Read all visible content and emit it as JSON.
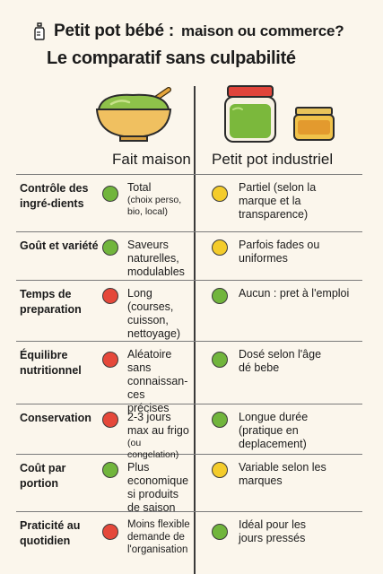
{
  "header": {
    "title_main": "Petit pot bébé :",
    "title_sub": "maison ou commerce?",
    "subtitle": "Le comparatif sans culpabilité"
  },
  "icons": {
    "title": "baby-bottle-icon",
    "homemade": "puree-bowl-icon",
    "industrial": "baby-food-jars-icon"
  },
  "columns": {
    "homemade": "Fait maison",
    "industrial": "Petit pot industriel"
  },
  "colors": {
    "green": "#71b53c",
    "yellow": "#f4cc2b",
    "red": "#e5483a"
  },
  "rows": [
    {
      "label": "Contrôle des ingré-dients",
      "homemade": {
        "status": "green",
        "text": "Total",
        "note": "(choix perso, bio, local)"
      },
      "industrial": {
        "status": "yellow",
        "text": "Partiel (selon la marque et la transparence)",
        "note": ""
      }
    },
    {
      "label": "Goût et variété",
      "homemade": {
        "status": "green",
        "text": "Saveurs naturelles, modulables",
        "note": ""
      },
      "industrial": {
        "status": "yellow",
        "text": "Parfois fades ou uniformes",
        "note": ""
      }
    },
    {
      "label": "Temps de preparation",
      "homemade": {
        "status": "red",
        "text": "Long (courses, cuisson, nettoyage)",
        "note": ""
      },
      "industrial": {
        "status": "green",
        "text": "Aucun : pret à l'emploi",
        "note": ""
      }
    },
    {
      "label": "Équilibre nutritionnel",
      "homemade": {
        "status": "red",
        "text": "Aléatoire sans connaissan-ces précises",
        "note": ""
      },
      "industrial": {
        "status": "green",
        "text": "Dosé selon l'âge dé bebe",
        "note": ""
      }
    },
    {
      "label": "Conservation",
      "homemade": {
        "status": "red",
        "text": "2-3 jours max au frigo",
        "note": "(ou congelation)"
      },
      "industrial": {
        "status": "green",
        "text": "Longue durée (pratique en deplacement)",
        "note": ""
      }
    },
    {
      "label": "Coût par portion",
      "homemade": {
        "status": "green",
        "text": "Plus economique si produits de saison",
        "note": ""
      },
      "industrial": {
        "status": "yellow",
        "text": "Variable selon les marques",
        "note": ""
      }
    },
    {
      "label": "Praticité au quotidien",
      "homemade": {
        "status": "red",
        "text": "Moins flexible demande de l'organisation",
        "note": ""
      },
      "industrial": {
        "status": "green",
        "text": "Idéal pour les jours pressés",
        "note": ""
      }
    }
  ]
}
